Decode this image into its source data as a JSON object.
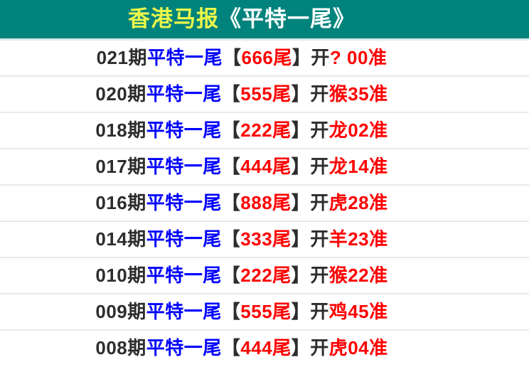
{
  "header": {
    "title_highlight": "香港马报",
    "title_rest": "《平特一尾》"
  },
  "colors": {
    "header_bg": "#00837c",
    "title_highlight": "#eaf64a",
    "title_rest": "#ffffff",
    "text_black": "#2d2d2d",
    "text_blue": "#0000fe",
    "text_red": "#fe0000",
    "row_separator": "#e9e9e9"
  },
  "rows": [
    {
      "period": "021期",
      "label": "平特一尾",
      "bracket_open": "【",
      "tail": "666尾",
      "bracket_close": "】",
      "kai": "开",
      "result": "? 00准"
    },
    {
      "period": "020期",
      "label": "平特一尾",
      "bracket_open": "【",
      "tail": "555尾",
      "bracket_close": "】",
      "kai": "开",
      "result": "猴35准"
    },
    {
      "period": "018期",
      "label": "平特一尾",
      "bracket_open": "【",
      "tail": "222尾",
      "bracket_close": "】",
      "kai": "开",
      "result": "龙02准"
    },
    {
      "period": "017期",
      "label": "平特一尾",
      "bracket_open": "【",
      "tail": "444尾",
      "bracket_close": "】",
      "kai": "开",
      "result": "龙14准"
    },
    {
      "period": "016期",
      "label": "平特一尾",
      "bracket_open": "【",
      "tail": "888尾",
      "bracket_close": "】",
      "kai": "开",
      "result": "虎28准"
    },
    {
      "period": "014期",
      "label": "平特一尾",
      "bracket_open": "【",
      "tail": "333尾",
      "bracket_close": "】",
      "kai": "开",
      "result": "羊23准"
    },
    {
      "period": "010期",
      "label": "平特一尾",
      "bracket_open": "【",
      "tail": "222尾",
      "bracket_close": "】",
      "kai": "开",
      "result": "猴22准"
    },
    {
      "period": "009期",
      "label": "平特一尾",
      "bracket_open": "【",
      "tail": "555尾",
      "bracket_close": "】",
      "kai": "开",
      "result": "鸡45准"
    },
    {
      "period": "008期",
      "label": "平特一尾",
      "bracket_open": "【",
      "tail": "444尾",
      "bracket_close": "】",
      "kai": "开",
      "result": "虎04准"
    }
  ]
}
